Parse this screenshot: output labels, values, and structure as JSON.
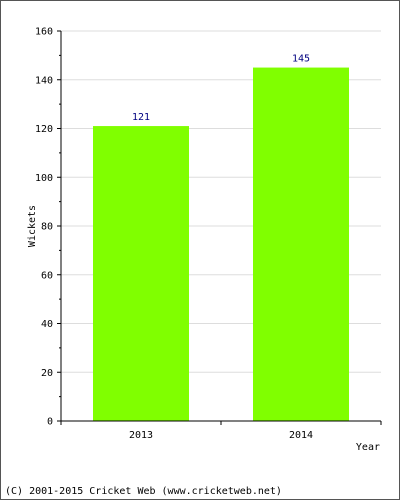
{
  "chart_data": {
    "type": "bar",
    "categories": [
      "2013",
      "2014"
    ],
    "values": [
      121,
      145
    ],
    "data_labels": [
      "121",
      "145"
    ],
    "xlabel": "Year",
    "ylabel": "Wickets",
    "ylim": [
      0,
      160
    ],
    "yticks": [
      0,
      20,
      40,
      60,
      80,
      100,
      120,
      140,
      160
    ],
    "grid": true,
    "bar_color": "#80ff00",
    "grid_color": "#dddddd",
    "label_color": "#000080"
  },
  "footer": {
    "copyright": "(C) 2001-2015 Cricket Web (www.cricketweb.net)"
  }
}
